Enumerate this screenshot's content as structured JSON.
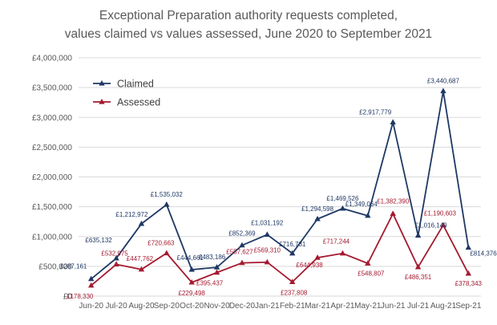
{
  "chart_data": {
    "type": "line",
    "title": [
      "Exceptional Preparation authority requests completed,",
      "values claimed vs values assessed, June 2020 to September 2021"
    ],
    "xlabel": "",
    "ylabel": "",
    "categories": [
      "Jun-20",
      "Jul-20",
      "Aug-20",
      "Sep-20",
      "Oct-20",
      "Nov-20",
      "Dec-20",
      "Jan-21",
      "Feb-21",
      "Mar-21",
      "Apr-21",
      "May-21",
      "Jun-21",
      "Jul-21",
      "Aug-21",
      "Sep-21"
    ],
    "y_ticks": [
      0,
      500000,
      1000000,
      1500000,
      2000000,
      2500000,
      3000000,
      3500000,
      4000000
    ],
    "y_tick_labels": [
      "£0",
      "£500,000",
      "£1,000,000",
      "£1,500,000",
      "£2,000,000",
      "£2,500,000",
      "£3,000,000",
      "£3,500,000",
      "£4,000,000"
    ],
    "ylim": [
      0,
      4000000
    ],
    "grid": "horizontal",
    "legend_position": "top-left",
    "series": [
      {
        "name": "Claimed",
        "color": "#1f3864",
        "marker": "triangle",
        "values": [
          287161,
          635132,
          1212972,
          1535032,
          444661,
          483186,
          852369,
          1031192,
          716731,
          1294598,
          1469526,
          1349064,
          2917779,
          1016149,
          3440687,
          814376
        ],
        "labels": [
          "£287,161",
          "£635,132",
          "£1,212,972",
          "£1,535,032",
          "£444,661",
          "£483,186",
          "£852,369",
          "£1,031,192",
          "£716,731",
          "£1,294,598",
          "£1,469,526",
          "£1,349,064",
          "£2,917,779",
          "£1,016,149",
          "£3,440,687",
          "£814,376"
        ]
      },
      {
        "name": "Assessed",
        "color": "#a5192f",
        "marker": "triangle",
        "values": [
          178330,
          532975,
          447762,
          720663,
          229498,
          395437,
          557627,
          569310,
          237808,
          644938,
          717244,
          548807,
          1382390,
          486351,
          1190603,
          378343
        ],
        "labels": [
          "£178,330",
          "£532,975",
          "£447,762",
          "£720,663",
          "£229,498",
          "£395,437",
          "£557,627",
          "£569,310",
          "£237,808",
          "£644,938",
          "£717,244",
          "£548,807",
          "£1,382,390",
          "£486,351",
          "£1,190,603",
          "£378,343"
        ]
      }
    ]
  }
}
